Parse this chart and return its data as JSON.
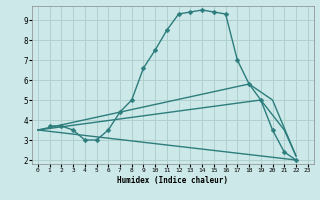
{
  "bg_color": "#cde8e8",
  "line_color": "#2d7d7d",
  "grid_color": "#b0d0d0",
  "xlabel": "Humidex (Indice chaleur)",
  "xlim": [
    -0.5,
    23.5
  ],
  "ylim": [
    1.8,
    9.7
  ],
  "yticks": [
    2,
    3,
    4,
    5,
    6,
    7,
    8,
    9
  ],
  "xticks": [
    0,
    1,
    2,
    3,
    4,
    5,
    6,
    7,
    8,
    9,
    10,
    11,
    12,
    13,
    14,
    15,
    16,
    17,
    18,
    19,
    20,
    21,
    22,
    23
  ],
  "lines": [
    {
      "x": [
        1,
        2,
        3,
        4,
        5,
        6,
        7,
        8,
        9,
        10,
        11,
        12,
        13,
        14,
        15,
        16,
        17,
        18,
        19,
        20,
        21,
        22
      ],
      "y": [
        3.7,
        3.7,
        3.5,
        3.0,
        3.0,
        3.5,
        4.4,
        5.0,
        6.6,
        7.5,
        8.5,
        9.3,
        9.4,
        9.5,
        9.4,
        9.3,
        7.0,
        5.8,
        5.0,
        3.5,
        2.4,
        2.0
      ],
      "has_markers": true,
      "markersize": 2.5,
      "linewidth": 1.0
    },
    {
      "x": [
        0,
        18,
        20,
        22
      ],
      "y": [
        3.5,
        5.8,
        5.0,
        2.2
      ],
      "has_markers": false,
      "markersize": 2.5,
      "linewidth": 1.0
    },
    {
      "x": [
        0,
        19,
        21,
        22
      ],
      "y": [
        3.5,
        5.0,
        3.5,
        2.2
      ],
      "has_markers": false,
      "markersize": 2.5,
      "linewidth": 1.0
    },
    {
      "x": [
        0,
        22
      ],
      "y": [
        3.5,
        2.0
      ],
      "has_markers": false,
      "markersize": 2.5,
      "linewidth": 1.0
    }
  ]
}
